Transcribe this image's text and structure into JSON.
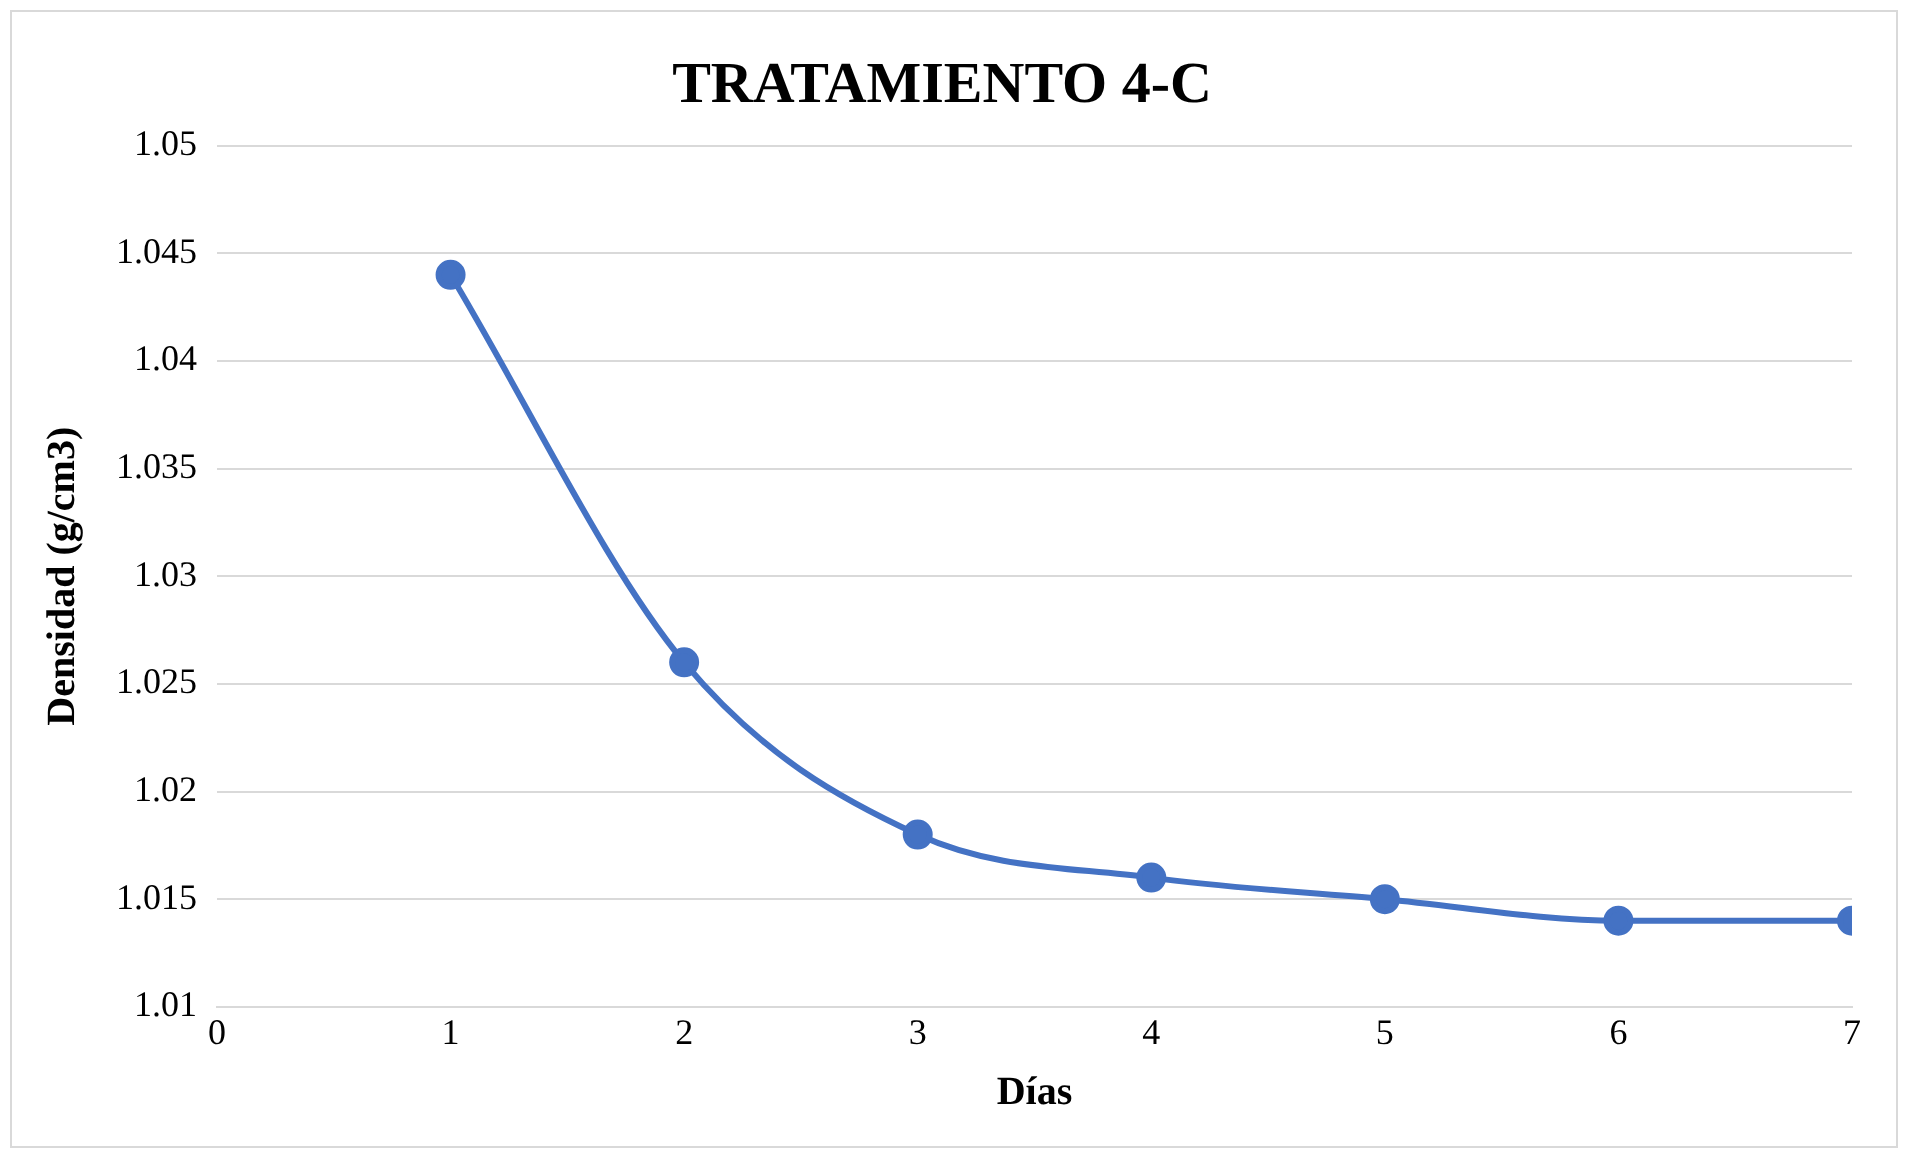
{
  "chart_data": {
    "type": "line",
    "title": "TRATAMIENTO 4-C",
    "xlabel": "Días",
    "ylabel": "Densidad (g/cm3)",
    "x": [
      1,
      2,
      3,
      4,
      5,
      6,
      7
    ],
    "series": [
      {
        "color": "#4472c4",
        "values": [
          1.044,
          1.026,
          1.018,
          1.016,
          1.015,
          1.014,
          1.014
        ]
      }
    ],
    "xlim": [
      0,
      7
    ],
    "xticks": [
      0,
      1,
      2,
      3,
      4,
      5,
      6,
      7
    ],
    "ylim": [
      1.01,
      1.05
    ],
    "yticks": [
      1.01,
      1.015,
      1.02,
      1.025,
      1.03,
      1.035,
      1.04,
      1.045,
      1.05
    ],
    "grid": "y",
    "legend": false,
    "marker": "circle",
    "line_style": "solid"
  }
}
